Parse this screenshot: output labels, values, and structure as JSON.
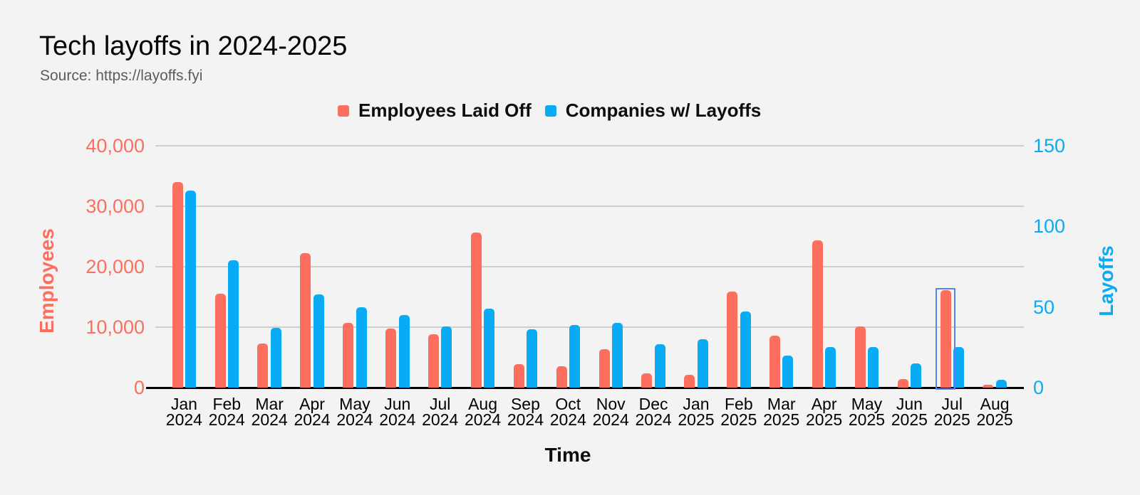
{
  "title": "Tech layoffs in 2024-2025",
  "source": "Source: https://layoffs.fyi",
  "chart_data": {
    "type": "bar",
    "title": "Tech layoffs in 2024-2025",
    "subtitle": "Source: https://layoffs.fyi",
    "xlabel": "Time",
    "grid": true,
    "legend_position": "top-center",
    "categories": [
      "Jan 2024",
      "Feb 2024",
      "Mar 2024",
      "Apr 2024",
      "May 2024",
      "Jun 2024",
      "Jul 2024",
      "Aug 2024",
      "Sep 2024",
      "Oct 2024",
      "Nov 2024",
      "Dec 2024",
      "Jan 2025",
      "Feb 2025",
      "Mar 2025",
      "Apr 2025",
      "May 2025",
      "Jun 2025",
      "Jul 2025",
      "Aug 2025"
    ],
    "series": [
      {
        "name": "Employees Laid Off",
        "axis": "left",
        "color": "#FC6E5E",
        "values": [
          34000,
          15500,
          7300,
          22200,
          10700,
          9800,
          8800,
          25600,
          3850,
          3500,
          6300,
          2300,
          2100,
          15900,
          8600,
          24300,
          10100,
          1400,
          16100,
          500
        ]
      },
      {
        "name": "Companies w/ Layoffs",
        "axis": "right",
        "color": "#0AABF5",
        "values": [
          122,
          79,
          37,
          58,
          50,
          45,
          38,
          49,
          36,
          39,
          40,
          27,
          30,
          47,
          20,
          25,
          25,
          15,
          25,
          5
        ]
      }
    ],
    "y_left": {
      "label": "Employees",
      "max": 40000,
      "min": 0,
      "ticks": [
        "40,000",
        "30,000",
        "20,000",
        "10,000",
        "0"
      ],
      "color": "#FC6E5E"
    },
    "y_right": {
      "label": "Layoffs",
      "max": 150,
      "min": 0,
      "ticks": [
        "150",
        "100",
        "50",
        "0"
      ],
      "color": "#0AABF5"
    },
    "highlight": {
      "category": "Jul 2025",
      "series": "Employees Laid Off"
    }
  }
}
